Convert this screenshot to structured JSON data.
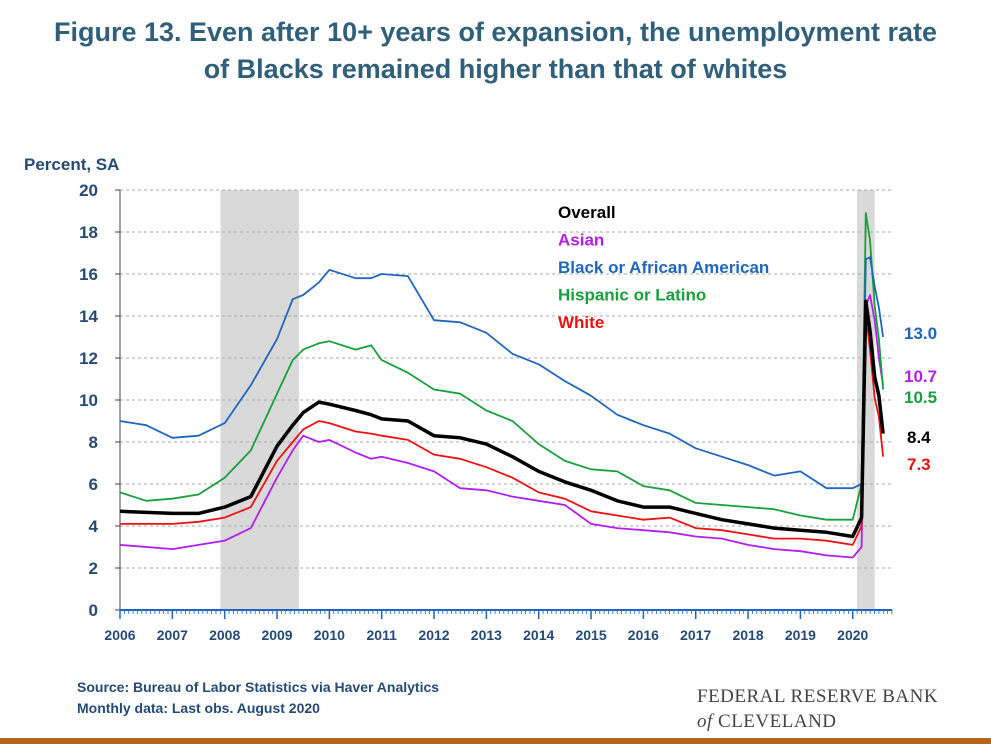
{
  "title": {
    "line1": "Figure 13. Even after 10+ years of expansion, the unemployment rate",
    "line2": "of Blacks remained higher than that of whites"
  },
  "footer": {
    "source": "Source: Bureau of Labor Statistics via Haver Analytics",
    "note": "Monthly data: Last obs. August 2020"
  },
  "logo": {
    "line1": "FEDERAL RESERVE BANK",
    "of": "of",
    "line2": "CLEVELAND"
  },
  "chart_data": {
    "type": "line",
    "ylabel": "Percent, SA",
    "xlim": [
      2006,
      2020.75
    ],
    "ylim": [
      0,
      20
    ],
    "yticks": [
      0,
      2,
      4,
      6,
      8,
      10,
      12,
      14,
      16,
      18,
      20
    ],
    "xticks": [
      "2006",
      "2007",
      "2008",
      "2009",
      "2010",
      "2011",
      "2012",
      "2013",
      "2014",
      "2015",
      "2016",
      "2017",
      "2018",
      "2019",
      "2020"
    ],
    "grid": true,
    "legend_position": "top-right",
    "recessions": [
      [
        2007.92,
        2009.42
      ],
      [
        2020.08,
        2020.42
      ]
    ],
    "colors": {
      "Overall": "#000000",
      "Asian": "#b31ef0",
      "Black or African American": "#1f66c0",
      "Hispanic or Latino": "#18a03c",
      "White": "#ee1111"
    },
    "series": [
      {
        "name": "Overall",
        "x": [
          2006,
          2007,
          2007.5,
          2008,
          2008.5,
          2009,
          2009.3,
          2009.5,
          2009.8,
          2010,
          2010.5,
          2010.8,
          2011,
          2011.5,
          2012,
          2012.5,
          2013,
          2013.5,
          2014,
          2014.5,
          2015,
          2015.5,
          2016,
          2016.5,
          2017,
          2017.5,
          2018,
          2018.5,
          2019,
          2019.5,
          2020,
          2020.17,
          2020.25,
          2020.33,
          2020.42,
          2020.5,
          2020.58
        ],
        "y": [
          4.7,
          4.6,
          4.6,
          4.9,
          5.4,
          7.8,
          8.8,
          9.4,
          9.9,
          9.8,
          9.5,
          9.3,
          9.1,
          9.0,
          8.3,
          8.2,
          7.9,
          7.3,
          6.6,
          6.1,
          5.7,
          5.2,
          4.9,
          4.9,
          4.6,
          4.3,
          4.1,
          3.9,
          3.8,
          3.7,
          3.5,
          4.4,
          14.7,
          13.3,
          11.1,
          10.2,
          8.4
        ],
        "label": "8.4"
      },
      {
        "name": "Asian",
        "x": [
          2006,
          2007,
          2007.5,
          2008,
          2008.5,
          2009,
          2009.3,
          2009.5,
          2009.8,
          2010,
          2010.5,
          2010.8,
          2011,
          2011.5,
          2012,
          2012.5,
          2013,
          2013.5,
          2014,
          2014.5,
          2015,
          2015.5,
          2016,
          2016.5,
          2017,
          2017.5,
          2018,
          2018.5,
          2019,
          2019.5,
          2020,
          2020.17,
          2020.25,
          2020.33,
          2020.42,
          2020.5,
          2020.58
        ],
        "y": [
          3.1,
          2.9,
          3.1,
          3.3,
          3.9,
          6.3,
          7.6,
          8.3,
          8.0,
          8.1,
          7.5,
          7.2,
          7.3,
          7.0,
          6.6,
          5.8,
          5.7,
          5.4,
          5.2,
          5.0,
          4.1,
          3.9,
          3.8,
          3.7,
          3.5,
          3.4,
          3.1,
          2.9,
          2.8,
          2.6,
          2.5,
          3.0,
          14.5,
          15.0,
          13.8,
          12.0,
          10.7
        ],
        "label": "10.7"
      },
      {
        "name": "Black or African American",
        "x": [
          2006,
          2006.5,
          2007,
          2007.5,
          2008,
          2008.5,
          2009,
          2009.3,
          2009.5,
          2009.8,
          2010,
          2010.5,
          2010.8,
          2011,
          2011.5,
          2012,
          2012.5,
          2013,
          2013.5,
          2014,
          2014.5,
          2015,
          2015.5,
          2016,
          2016.5,
          2017,
          2017.5,
          2018,
          2018.5,
          2019,
          2019.5,
          2020,
          2020.17,
          2020.25,
          2020.33,
          2020.42,
          2020.5,
          2020.58
        ],
        "y": [
          9.0,
          8.8,
          8.2,
          8.3,
          8.9,
          10.7,
          12.9,
          14.8,
          15.0,
          15.6,
          16.2,
          15.8,
          15.8,
          16.0,
          15.9,
          13.8,
          13.7,
          13.2,
          12.2,
          11.7,
          10.9,
          10.2,
          9.3,
          8.8,
          8.4,
          7.7,
          7.3,
          6.9,
          6.4,
          6.6,
          5.8,
          5.8,
          6.0,
          16.7,
          16.8,
          15.4,
          14.4,
          13.0
        ],
        "label": "13.0"
      },
      {
        "name": "Hispanic or Latino",
        "x": [
          2006,
          2006.5,
          2007,
          2007.5,
          2008,
          2008.5,
          2009,
          2009.3,
          2009.5,
          2009.8,
          2010,
          2010.5,
          2010.8,
          2011,
          2011.5,
          2012,
          2012.5,
          2013,
          2013.5,
          2014,
          2014.5,
          2015,
          2015.5,
          2016,
          2016.5,
          2017,
          2017.5,
          2018,
          2018.5,
          2019,
          2019.5,
          2020,
          2020.17,
          2020.25,
          2020.33,
          2020.42,
          2020.5,
          2020.58
        ],
        "y": [
          5.6,
          5.2,
          5.3,
          5.5,
          6.3,
          7.6,
          10.3,
          11.9,
          12.4,
          12.7,
          12.8,
          12.4,
          12.6,
          11.9,
          11.3,
          10.5,
          10.3,
          9.5,
          9.0,
          7.9,
          7.1,
          6.7,
          6.6,
          5.9,
          5.7,
          5.1,
          5.0,
          4.9,
          4.8,
          4.5,
          4.3,
          4.3,
          6.0,
          18.9,
          17.6,
          14.5,
          12.9,
          10.5
        ],
        "label": "10.5"
      },
      {
        "name": "White",
        "x": [
          2006,
          2007,
          2007.5,
          2008,
          2008.5,
          2009,
          2009.3,
          2009.5,
          2009.8,
          2010,
          2010.5,
          2010.8,
          2011,
          2011.5,
          2012,
          2012.5,
          2013,
          2013.5,
          2014,
          2014.5,
          2015,
          2015.5,
          2016,
          2016.5,
          2017,
          2017.5,
          2018,
          2018.5,
          2019,
          2019.5,
          2020,
          2020.17,
          2020.25,
          2020.33,
          2020.42,
          2020.5,
          2020.58
        ],
        "y": [
          4.1,
          4.1,
          4.2,
          4.4,
          4.9,
          7.1,
          8.0,
          8.6,
          9.0,
          8.9,
          8.5,
          8.4,
          8.3,
          8.1,
          7.4,
          7.2,
          6.8,
          6.3,
          5.6,
          5.3,
          4.7,
          4.5,
          4.3,
          4.4,
          3.9,
          3.8,
          3.6,
          3.4,
          3.4,
          3.3,
          3.1,
          4.0,
          14.2,
          12.4,
          10.1,
          9.2,
          7.3
        ],
        "label": "7.3"
      }
    ]
  }
}
